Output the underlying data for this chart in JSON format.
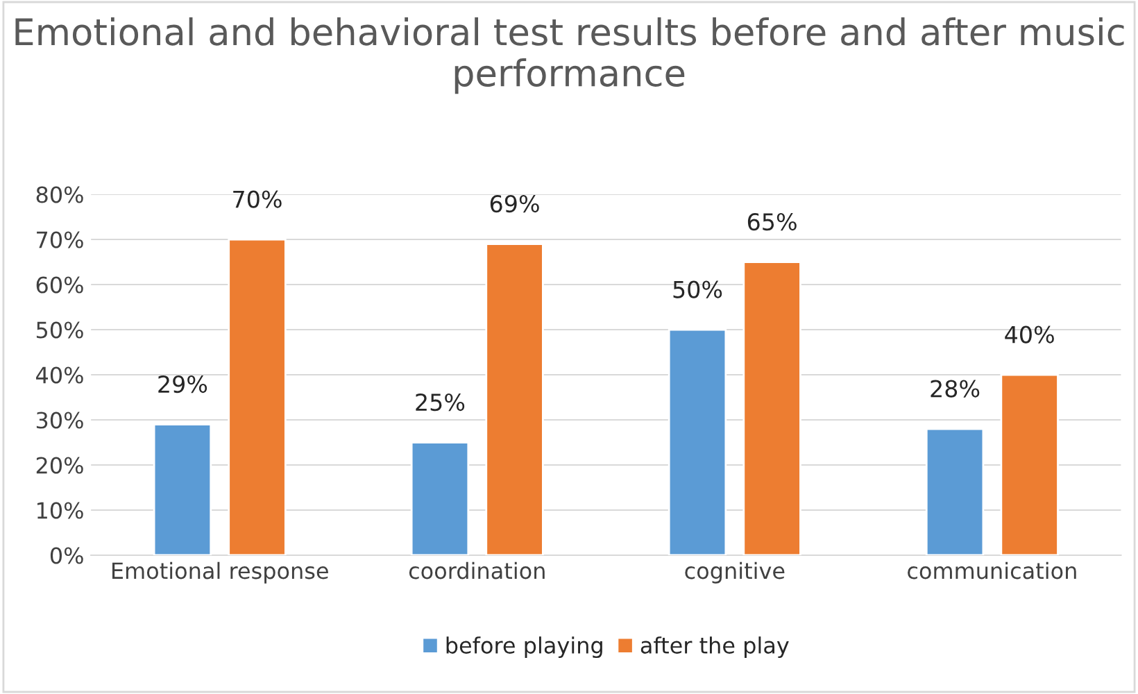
{
  "chart_data": {
    "type": "bar",
    "title": "Emotional and behavioral test results before and after music performance",
    "categories": [
      "Emotional response",
      "coordination",
      "cognitive",
      "communication"
    ],
    "series": [
      {
        "name": "before playing",
        "color": "#5b9bd5",
        "values": [
          29,
          25,
          50,
          28
        ],
        "value_labels": [
          "29%",
          "25%",
          "50%",
          "28%"
        ]
      },
      {
        "name": "after the play",
        "color": "#ed7d31",
        "values": [
          70,
          69,
          65,
          40
        ],
        "value_labels": [
          "70%",
          "69%",
          "65%",
          "40%"
        ]
      }
    ],
    "ylim": [
      0,
      80
    ],
    "yticks": [
      {
        "value": 0,
        "label": "0%"
      },
      {
        "value": 10,
        "label": "10%"
      },
      {
        "value": 20,
        "label": "20%"
      },
      {
        "value": 30,
        "label": "30%"
      },
      {
        "value": 40,
        "label": "40%"
      },
      {
        "value": 50,
        "label": "50%"
      },
      {
        "value": 60,
        "label": "60%"
      },
      {
        "value": 70,
        "label": "70%"
      },
      {
        "value": 80,
        "label": "80%"
      }
    ],
    "grid": "y",
    "legend": "bottom"
  }
}
